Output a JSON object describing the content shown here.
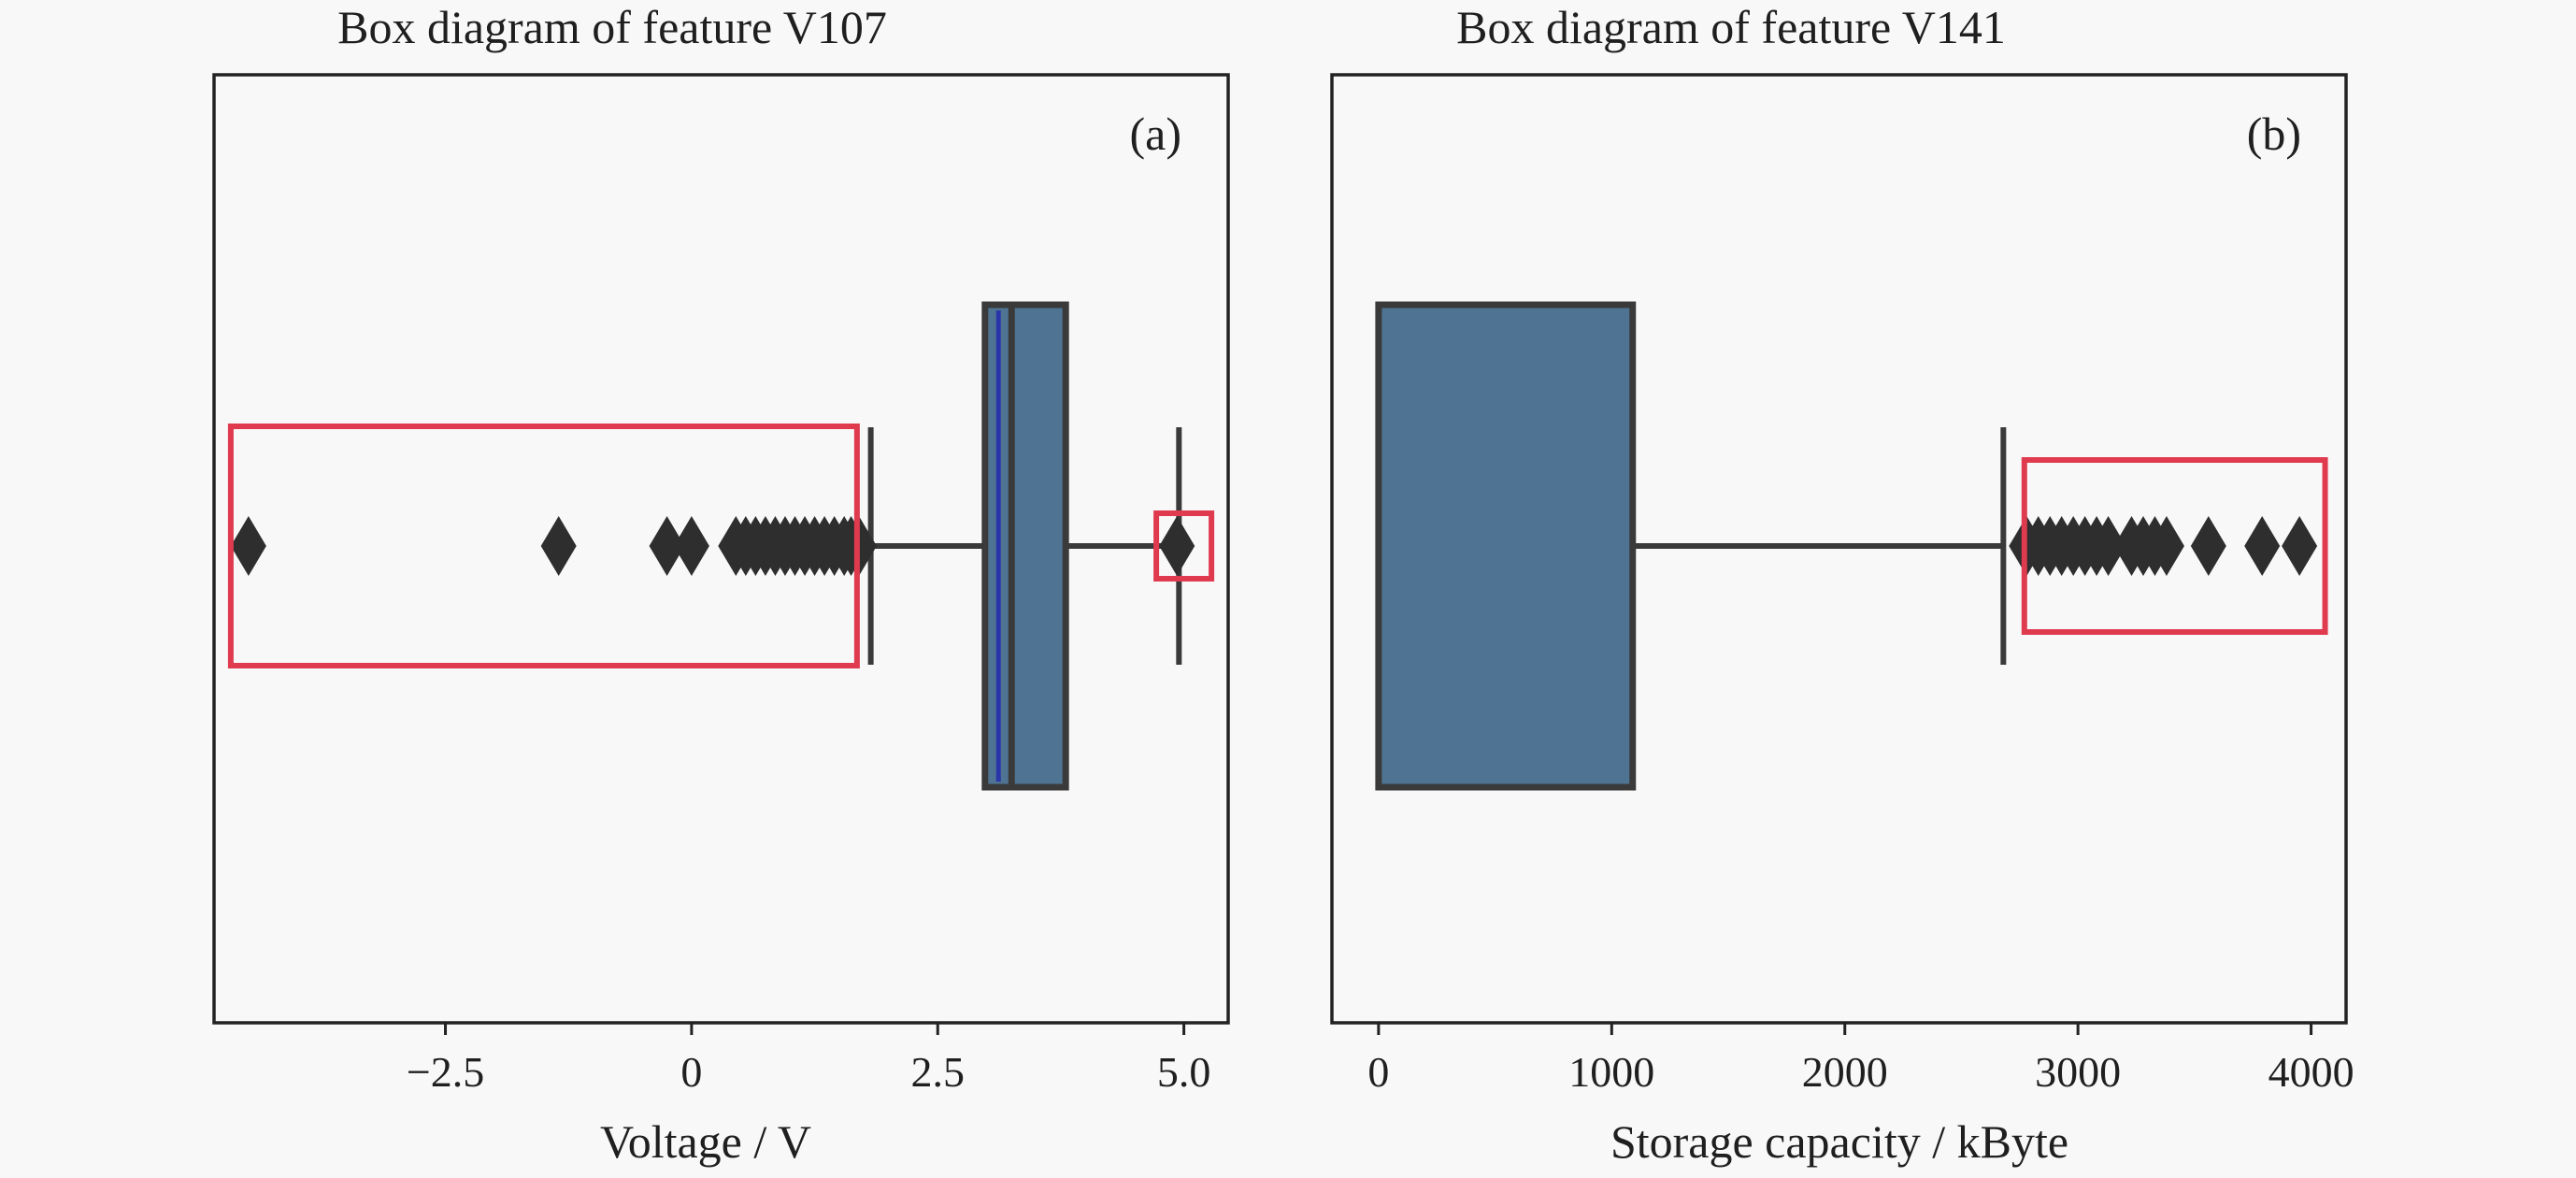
{
  "chart_data": [
    {
      "type": "box",
      "panel_label": "(a)",
      "title": "Box diagram of feature V107",
      "xlabel": "Voltage / V",
      "xlim": [
        -4.85,
        5.45
      ],
      "xticks": [
        -2.5,
        0,
        2.5,
        5.0
      ],
      "xtick_labels": [
        "−2.5",
        "0",
        "2.5",
        "5.0"
      ],
      "box": {
        "q1": 2.98,
        "median": 3.25,
        "q3": 3.8,
        "whisker_low": 1.82,
        "whisker_high": 4.95
      },
      "outliers": [
        -4.5,
        -1.35,
        -0.25,
        0.0,
        0.45,
        0.55,
        0.65,
        0.75,
        0.85,
        0.95,
        1.05,
        1.15,
        1.25,
        1.35,
        1.45,
        1.55,
        1.62,
        1.7,
        4.93
      ],
      "highlight_ranges": [
        [
          -4.68,
          1.68
        ],
        [
          4.72,
          5.28
        ]
      ],
      "colors": {
        "box": "#4f7493",
        "highlight": "#e03a4e",
        "median": "#2a35a8"
      }
    },
    {
      "type": "box",
      "panel_label": "(b)",
      "title": "Box diagram of feature V141",
      "xlabel": "Storage capacity / kByte",
      "xlim": [
        -200,
        4150
      ],
      "xticks": [
        0,
        1000,
        2000,
        3000,
        4000
      ],
      "xtick_labels": [
        "0",
        "1000",
        "2000",
        "3000",
        "4000"
      ],
      "box": {
        "q1": 0,
        "median": 0,
        "q3": 1090,
        "whisker_low": 0,
        "whisker_high": 2680
      },
      "outliers": [
        2780,
        2830,
        2880,
        2930,
        2980,
        3030,
        3080,
        3130,
        3230,
        3280,
        3330,
        3380,
        3560,
        3790,
        3950
      ],
      "highlight_ranges": [
        [
          2770,
          4060
        ]
      ],
      "colors": {
        "box": "#4f7493",
        "highlight": "#e03a4e"
      }
    }
  ]
}
